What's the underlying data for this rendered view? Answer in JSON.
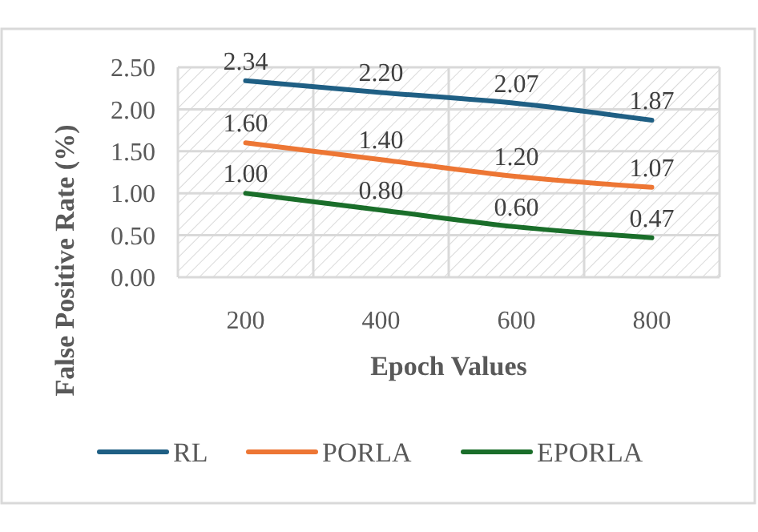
{
  "chart_data": {
    "type": "line",
    "xlabel": "Epoch Values",
    "ylabel": "False Positive Rate (%)",
    "categories": [
      "200",
      "400",
      "600",
      "800"
    ],
    "series": [
      {
        "name": "RL",
        "color": "#1f5f84",
        "values": [
          2.34,
          2.2,
          2.07,
          1.87
        ],
        "value_labels": [
          "2.34",
          "2.20",
          "2.07",
          "1.87"
        ]
      },
      {
        "name": "PORLA",
        "color": "#ed7634",
        "values": [
          1.6,
          1.4,
          1.2,
          1.07
        ],
        "value_labels": [
          "1.60",
          "1.40",
          "1.20",
          "1.07"
        ]
      },
      {
        "name": "EPORLA",
        "color": "#1a6e2a",
        "values": [
          1.0,
          0.8,
          0.6,
          0.47
        ],
        "value_labels": [
          "1.00",
          "0.80",
          "0.60",
          "0.47"
        ]
      }
    ],
    "ylim": [
      0,
      2.5
    ],
    "yticks": [
      {
        "value": 0,
        "label": "0.00"
      },
      {
        "value": 0.5,
        "label": "0.50"
      },
      {
        "value": 1,
        "label": "1.00"
      },
      {
        "value": 1.5,
        "label": "1.50"
      },
      {
        "value": 2,
        "label": "2.00"
      },
      {
        "value": 2.5,
        "label": "2.50"
      }
    ],
    "grid": true,
    "legend": "bottom",
    "marker": "none",
    "line_style": "solid"
  }
}
